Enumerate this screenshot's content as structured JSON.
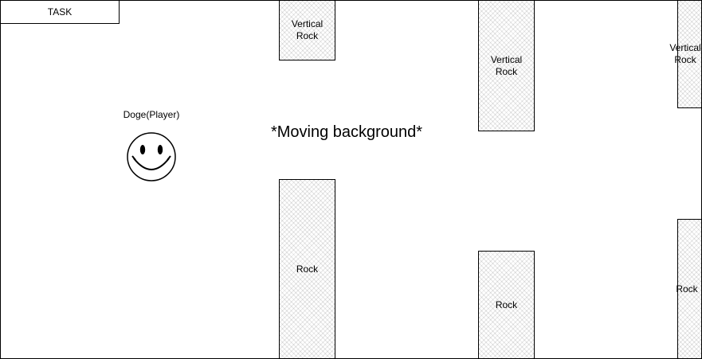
{
  "task": {
    "label": "TASK"
  },
  "background": {
    "label": "*Moving background*"
  },
  "player": {
    "label": "Doge(Player)",
    "icon": "smiley-face-icon"
  },
  "rocks": [
    {
      "label": "Vertical\nRock",
      "kind": "vertical"
    },
    {
      "label": "Vertical\nRock",
      "kind": "vertical"
    },
    {
      "label": "Vertical\nRock",
      "kind": "vertical"
    },
    {
      "label": "Rock",
      "kind": "bottom"
    },
    {
      "label": "Rock",
      "kind": "bottom"
    },
    {
      "label": "Rock",
      "kind": "bottom"
    }
  ]
}
